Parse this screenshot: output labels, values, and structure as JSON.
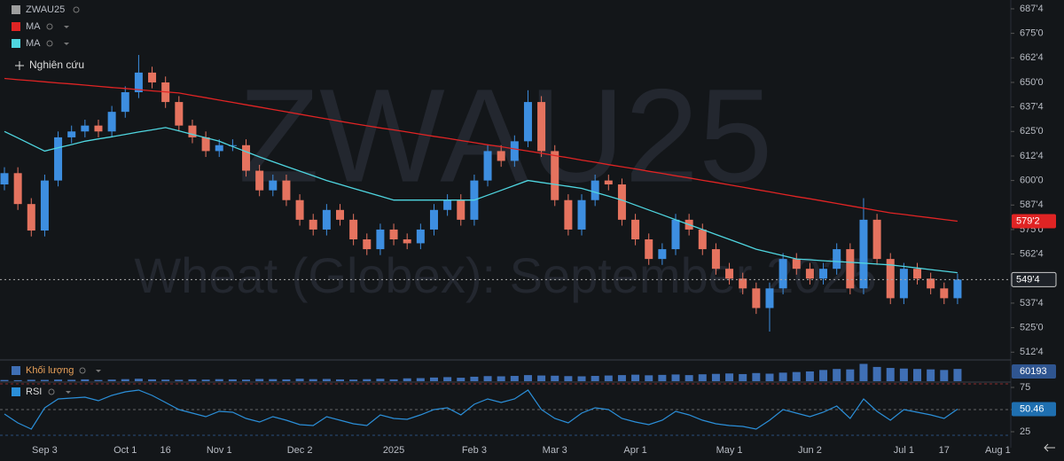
{
  "header": {
    "research": "Nghiên cứu"
  },
  "watermark": {
    "symbol": "ZWAU25",
    "name": "Wheat (Globex): September 2025"
  },
  "chart_data": [
    {
      "type": "candlestick",
      "symbol": "ZWAU25",
      "categories": [
        null,
        null,
        null,
        "Sep 3",
        null,
        null,
        null,
        null,
        null,
        "Oct 1",
        null,
        null,
        "16",
        null,
        null,
        null,
        "Nov 1",
        null,
        null,
        null,
        null,
        null,
        "Dec 2",
        null,
        null,
        null,
        null,
        null,
        null,
        "2025",
        null,
        null,
        null,
        null,
        null,
        "Feb 3",
        null,
        null,
        null,
        null,
        null,
        "Mar 3",
        null,
        null,
        null,
        null,
        null,
        "Apr 1",
        null,
        null,
        null,
        null,
        null,
        null,
        "May 1",
        null,
        null,
        null,
        null,
        null,
        "Jun 2",
        null,
        null,
        null,
        null,
        null,
        null,
        "Jul 1",
        null,
        null,
        "17",
        null,
        null,
        null,
        "Aug 1"
      ],
      "open": [
        598,
        603.75,
        588,
        574.5,
        600,
        622,
        625,
        628,
        625,
        635,
        645,
        655,
        650,
        640,
        628,
        622,
        615,
        618,
        618,
        605,
        595,
        600,
        590,
        580,
        575,
        585,
        580,
        570,
        565,
        575,
        570,
        568,
        575,
        585,
        590,
        580,
        600,
        615,
        610,
        620,
        640,
        615,
        590,
        575,
        590,
        600,
        598,
        580,
        570,
        560,
        565,
        580,
        575,
        565,
        555,
        550,
        545,
        535,
        545,
        560,
        555,
        550,
        555,
        565,
        545,
        580,
        560,
        540,
        555,
        550,
        545,
        540,
        null,
        null,
        null
      ],
      "high": [
        606.75,
        606.75,
        591,
        603,
        625,
        628,
        631,
        631,
        638,
        648,
        664,
        658,
        653,
        643,
        631,
        625,
        621,
        621,
        621,
        608,
        603,
        603,
        593,
        583,
        588,
        588,
        583,
        573,
        578,
        578,
        573,
        578,
        588,
        593,
        593,
        603,
        618,
        618,
        623,
        646,
        643,
        618,
        593,
        593,
        603,
        603,
        601,
        583,
        573,
        568,
        583,
        583,
        578,
        568,
        558,
        553,
        548,
        548,
        563,
        563,
        558,
        558,
        568,
        568,
        591,
        583,
        563,
        558,
        558,
        553,
        548,
        552.5,
        null,
        null,
        null
      ],
      "low": [
        595,
        585,
        571.5,
        571.5,
        597,
        619,
        622,
        622,
        622,
        632,
        642,
        647,
        637,
        625,
        619,
        612,
        612,
        615,
        602,
        592,
        592,
        587,
        577,
        572,
        572,
        577,
        567,
        562,
        562,
        567,
        565,
        565,
        572,
        582,
        577,
        577,
        597,
        607,
        607,
        617,
        612,
        587,
        572,
        572,
        587,
        595,
        577,
        567,
        557,
        557,
        562,
        572,
        562,
        552,
        547,
        542,
        532,
        523,
        542,
        552,
        547,
        547,
        552,
        542,
        542,
        557,
        537,
        537,
        547,
        542,
        537,
        537,
        null,
        null,
        null
      ],
      "close": [
        603.75,
        588,
        574.5,
        600,
        622,
        625,
        628,
        625,
        635,
        645,
        655,
        650,
        640,
        628,
        622,
        615,
        618,
        618,
        605,
        595,
        600,
        590,
        580,
        575,
        585,
        580,
        570,
        565,
        575,
        570,
        568,
        575,
        585,
        590,
        580,
        600,
        615,
        610,
        620,
        640,
        615,
        590,
        575,
        590,
        600,
        598,
        580,
        570,
        560,
        565,
        580,
        575,
        565,
        555,
        550,
        545,
        535,
        545,
        560,
        555,
        550,
        555,
        565,
        545,
        580,
        560,
        540,
        555,
        550,
        545,
        540,
        549.5,
        null,
        null,
        null
      ],
      "last_price_label": "549'4",
      "up_color": "#3d8ee0",
      "down_color": "#e5735f",
      "ylim": [
        509,
        692
      ],
      "yticks": [
        {
          "value": 687.5,
          "label": "687'4"
        },
        {
          "value": 675,
          "label": "675'0"
        },
        {
          "value": 662.5,
          "label": "662'4"
        },
        {
          "value": 650,
          "label": "650'0"
        },
        {
          "value": 637.5,
          "label": "637'4"
        },
        {
          "value": 625,
          "label": "625'0"
        },
        {
          "value": 612.5,
          "label": "612'4"
        },
        {
          "value": 600,
          "label": "600'0"
        },
        {
          "value": 587.5,
          "label": "587'4"
        },
        {
          "value": 575,
          "label": "575'0"
        },
        {
          "value": 562.5,
          "label": "562'4"
        },
        {
          "value": 537.5,
          "label": "537'4"
        },
        {
          "value": 525,
          "label": "525'0"
        },
        {
          "value": 512.5,
          "label": "512'4"
        }
      ],
      "series": [
        {
          "name": "MA",
          "color": "#e02424",
          "value_label": "579'2",
          "values": [
            652.0,
            651.4,
            650.9,
            650.3,
            649.7,
            649.2,
            648.6,
            648.0,
            647.4,
            646.9,
            646.3,
            645.7,
            645.2,
            644.6,
            643.4,
            642.2,
            641.0,
            639.8,
            638.6,
            637.4,
            636.2,
            635.0,
            633.8,
            632.6,
            631.4,
            630.2,
            629.0,
            627.9,
            626.8,
            625.8,
            624.7,
            623.6,
            622.5,
            621.5,
            620.4,
            619.3,
            618.2,
            617.2,
            616.1,
            615.0,
            613.9,
            612.7,
            611.6,
            610.4,
            609.3,
            608.1,
            607.0,
            605.9,
            604.7,
            603.6,
            602.4,
            601.3,
            600.1,
            599.0,
            597.8,
            596.6,
            595.4,
            594.2,
            593.0,
            591.8,
            590.7,
            589.5,
            588.3,
            587.1,
            585.9,
            584.7,
            583.5,
            582.7,
            581.8,
            581.0,
            580.1,
            579.25,
            null,
            null,
            null
          ]
        },
        {
          "name": "MA",
          "color": "#4fd6e0",
          "values": [
            625,
            621.7,
            618.3,
            615,
            616.7,
            618.3,
            620,
            621.2,
            622.3,
            623.5,
            624.7,
            625.8,
            627,
            625.3,
            623.5,
            621.8,
            620,
            617.3,
            614.7,
            612,
            609.6,
            607.2,
            604.8,
            602.4,
            600,
            598,
            596,
            594,
            592,
            590,
            590,
            590,
            590,
            590,
            590,
            590,
            592.5,
            595,
            597.5,
            600,
            599,
            598,
            597,
            596,
            594,
            592,
            590,
            587.5,
            585,
            582.5,
            580,
            577.5,
            575,
            572.5,
            570,
            567.5,
            565,
            563.3,
            561.7,
            560,
            559.6,
            559.1,
            558.7,
            558.3,
            557.9,
            557.4,
            557,
            556.2,
            555.4,
            554.6,
            553.8,
            553,
            null,
            null,
            null
          ]
        }
      ]
    },
    {
      "type": "bar",
      "name": "Khối lượng",
      "color": "#3f6fb5",
      "ylim": [
        0,
        100000
      ],
      "values": [
        6000,
        5000,
        7000,
        6500,
        8000,
        7000,
        9000,
        6000,
        8000,
        10000,
        12000,
        9000,
        8000,
        7000,
        9000,
        8000,
        10000,
        9000,
        8000,
        11000,
        10000,
        9000,
        12000,
        10000,
        11000,
        9000,
        8000,
        10000,
        12000,
        9000,
        14000,
        15000,
        18000,
        20000,
        17000,
        22000,
        25000,
        24000,
        26000,
        30000,
        28000,
        27000,
        25000,
        24000,
        26000,
        28000,
        30000,
        32000,
        29000,
        31000,
        33000,
        30000,
        34000,
        36000,
        38000,
        35000,
        40000,
        37000,
        42000,
        45000,
        48000,
        55000,
        60000,
        58000,
        85000,
        70000,
        65000,
        62000,
        60000,
        58000,
        55000,
        60193,
        null,
        null,
        null
      ]
    },
    {
      "type": "line",
      "name": "RSI",
      "color": "#2b8fd9",
      "ylim": [
        7,
        80
      ],
      "yticks": [
        25,
        50,
        75
      ],
      "values": [
        45,
        35,
        28,
        52,
        62,
        63,
        64,
        60,
        66,
        70,
        72,
        66,
        58,
        50,
        46,
        42,
        48,
        47,
        40,
        36,
        42,
        38,
        33,
        32,
        42,
        38,
        34,
        32,
        44,
        40,
        39,
        44,
        50,
        52,
        44,
        56,
        62,
        58,
        62,
        72,
        50,
        40,
        35,
        46,
        52,
        50,
        40,
        36,
        33,
        38,
        48,
        44,
        38,
        34,
        32,
        31,
        28,
        38,
        50,
        46,
        42,
        47,
        54,
        40,
        62,
        48,
        38,
        50,
        47,
        44,
        40,
        50.46,
        null,
        null,
        null
      ]
    }
  ]
}
